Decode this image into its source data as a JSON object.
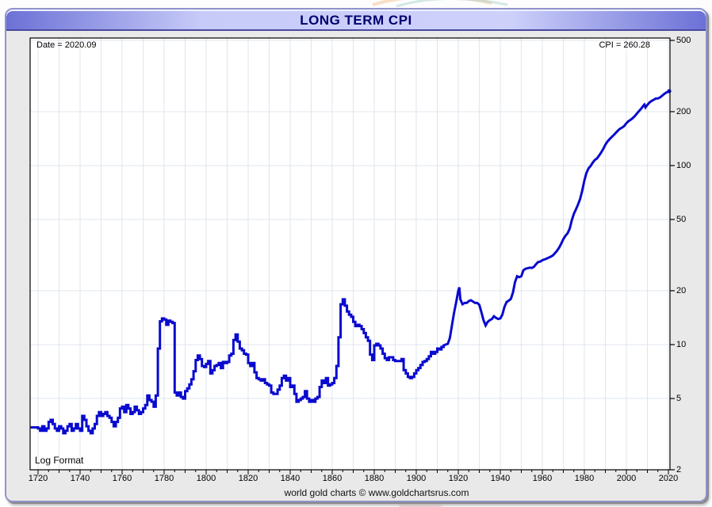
{
  "window": {
    "title": "LONG TERM CPI"
  },
  "annotations": {
    "date_label": "Date = 2020.09",
    "cpi_label": "CPI = 260.28",
    "scale_label": "Log Format",
    "footer": "world gold charts © www.goldchartsrus.com"
  },
  "colors": {
    "line": "#0909cf",
    "grid": "#dfe5ee",
    "plot_border": "#000000",
    "plot_bg": "#ffffff",
    "window_bg": "#e9e9e9",
    "titlebar_edge": "#6c71d6",
    "titlebar_mid": "#cdd1fa",
    "title_text": "#00006e"
  },
  "chart_data": {
    "type": "line",
    "title": "LONG TERM CPI",
    "xlabel": "",
    "ylabel": "",
    "x_axis": {
      "range": [
        1720,
        2020
      ],
      "label_step_years": 20,
      "gridline_step_years": 10,
      "minor_tick_step_years": 5,
      "tick_labels": [
        "1720",
        "1740",
        "1760",
        "1780",
        "1800",
        "1820",
        "1840",
        "1860",
        "1880",
        "1900",
        "1920",
        "1940",
        "1960",
        "1980",
        "2000",
        "2020"
      ]
    },
    "y_axis": {
      "scale": "log",
      "position": "right",
      "range": [
        2,
        500
      ],
      "ticks": [
        500,
        200,
        100,
        50,
        20,
        10,
        5,
        2
      ],
      "tick_labels": [
        "500",
        "200",
        "100",
        "50",
        "20",
        "10",
        "5",
        "2"
      ]
    },
    "grid": true,
    "legend": null,
    "latest": {
      "date": "2020.09",
      "value": 260.28
    },
    "step_until_year": 1913,
    "series": [
      {
        "name": "CPI",
        "color": "#0909cf",
        "points": [
          [
            1716,
            3.45
          ],
          [
            1720,
            3.4
          ],
          [
            1721,
            3.3
          ],
          [
            1722,
            3.5
          ],
          [
            1723,
            3.3
          ],
          [
            1724,
            3.4
          ],
          [
            1725,
            3.7
          ],
          [
            1726,
            3.8
          ],
          [
            1727,
            3.6
          ],
          [
            1728,
            3.4
          ],
          [
            1729,
            3.3
          ],
          [
            1730,
            3.5
          ],
          [
            1731,
            3.4
          ],
          [
            1732,
            3.2
          ],
          [
            1733,
            3.3
          ],
          [
            1734,
            3.5
          ],
          [
            1735,
            3.6
          ],
          [
            1736,
            3.3
          ],
          [
            1737,
            3.4
          ],
          [
            1738,
            3.6
          ],
          [
            1739,
            3.4
          ],
          [
            1740,
            3.3
          ],
          [
            1741,
            4.0
          ],
          [
            1742,
            3.8
          ],
          [
            1743,
            3.5
          ],
          [
            1744,
            3.3
          ],
          [
            1745,
            3.2
          ],
          [
            1746,
            3.4
          ],
          [
            1747,
            3.6
          ],
          [
            1748,
            4.0
          ],
          [
            1749,
            4.2
          ],
          [
            1750,
            4.0
          ],
          [
            1751,
            4.1
          ],
          [
            1752,
            4.2
          ],
          [
            1753,
            4.0
          ],
          [
            1754,
            3.9
          ],
          [
            1755,
            3.7
          ],
          [
            1756,
            3.5
          ],
          [
            1757,
            3.7
          ],
          [
            1758,
            3.9
          ],
          [
            1759,
            4.4
          ],
          [
            1760,
            4.5
          ],
          [
            1761,
            4.2
          ],
          [
            1762,
            4.6
          ],
          [
            1763,
            4.4
          ],
          [
            1764,
            4.1
          ],
          [
            1765,
            4.2
          ],
          [
            1766,
            4.5
          ],
          [
            1767,
            4.3
          ],
          [
            1768,
            4.1
          ],
          [
            1769,
            4.2
          ],
          [
            1770,
            4.4
          ],
          [
            1771,
            4.6
          ],
          [
            1772,
            5.2
          ],
          [
            1773,
            4.9
          ],
          [
            1774,
            4.8
          ],
          [
            1775,
            4.5
          ],
          [
            1776,
            5.2
          ],
          [
            1777,
            9.5
          ],
          [
            1778,
            13.5
          ],
          [
            1779,
            14.0
          ],
          [
            1780,
            13.8
          ],
          [
            1781,
            12.9
          ],
          [
            1782,
            13.6
          ],
          [
            1783,
            13.4
          ],
          [
            1784,
            13.2
          ],
          [
            1785,
            5.4
          ],
          [
            1786,
            5.2
          ],
          [
            1787,
            5.4
          ],
          [
            1788,
            5.1
          ],
          [
            1789,
            5.0
          ],
          [
            1790,
            5.5
          ],
          [
            1791,
            5.7
          ],
          [
            1792,
            6.0
          ],
          [
            1793,
            6.4
          ],
          [
            1794,
            7.1
          ],
          [
            1795,
            8.2
          ],
          [
            1796,
            8.7
          ],
          [
            1797,
            8.3
          ],
          [
            1798,
            7.6
          ],
          [
            1799,
            7.5
          ],
          [
            1800,
            7.8
          ],
          [
            1801,
            8.1
          ],
          [
            1802,
            6.9
          ],
          [
            1803,
            7.2
          ],
          [
            1804,
            7.6
          ],
          [
            1805,
            7.7
          ],
          [
            1806,
            7.9
          ],
          [
            1807,
            7.4
          ],
          [
            1808,
            8.0
          ],
          [
            1809,
            7.9
          ],
          [
            1810,
            8.0
          ],
          [
            1811,
            8.7
          ],
          [
            1812,
            8.9
          ],
          [
            1813,
            10.6
          ],
          [
            1814,
            11.4
          ],
          [
            1815,
            10.4
          ],
          [
            1816,
            9.5
          ],
          [
            1817,
            9.3
          ],
          [
            1818,
            8.9
          ],
          [
            1819,
            8.8
          ],
          [
            1820,
            7.9
          ],
          [
            1821,
            7.6
          ],
          [
            1822,
            7.9
          ],
          [
            1823,
            7.0
          ],
          [
            1824,
            6.5
          ],
          [
            1825,
            6.4
          ],
          [
            1826,
            6.3
          ],
          [
            1827,
            6.4
          ],
          [
            1828,
            6.1
          ],
          [
            1829,
            6.0
          ],
          [
            1830,
            5.9
          ],
          [
            1831,
            5.4
          ],
          [
            1832,
            5.3
          ],
          [
            1833,
            5.3
          ],
          [
            1834,
            5.6
          ],
          [
            1835,
            5.9
          ],
          [
            1836,
            6.5
          ],
          [
            1837,
            6.7
          ],
          [
            1838,
            6.3
          ],
          [
            1839,
            6.5
          ],
          [
            1840,
            5.8
          ],
          [
            1841,
            5.9
          ],
          [
            1842,
            5.3
          ],
          [
            1843,
            4.8
          ],
          [
            1844,
            4.9
          ],
          [
            1845,
            5.0
          ],
          [
            1846,
            5.1
          ],
          [
            1847,
            5.5
          ],
          [
            1848,
            5.0
          ],
          [
            1849,
            4.8
          ],
          [
            1850,
            4.9
          ],
          [
            1851,
            4.8
          ],
          [
            1852,
            5.0
          ],
          [
            1853,
            5.1
          ],
          [
            1854,
            5.8
          ],
          [
            1855,
            6.3
          ],
          [
            1856,
            6.1
          ],
          [
            1857,
            6.5
          ],
          [
            1858,
            5.9
          ],
          [
            1859,
            6.0
          ],
          [
            1860,
            6.1
          ],
          [
            1861,
            6.5
          ],
          [
            1862,
            7.6
          ],
          [
            1863,
            11.0
          ],
          [
            1864,
            16.8
          ],
          [
            1865,
            17.9
          ],
          [
            1866,
            16.5
          ],
          [
            1867,
            15.3
          ],
          [
            1868,
            14.7
          ],
          [
            1869,
            14.3
          ],
          [
            1870,
            13.4
          ],
          [
            1871,
            12.7
          ],
          [
            1872,
            12.9
          ],
          [
            1873,
            12.7
          ],
          [
            1874,
            12.2
          ],
          [
            1875,
            11.6
          ],
          [
            1876,
            11.0
          ],
          [
            1877,
            10.5
          ],
          [
            1878,
            8.8
          ],
          [
            1879,
            8.2
          ],
          [
            1880,
            9.9
          ],
          [
            1881,
            10.1
          ],
          [
            1882,
            9.9
          ],
          [
            1883,
            9.5
          ],
          [
            1884,
            8.9
          ],
          [
            1885,
            8.4
          ],
          [
            1886,
            8.2
          ],
          [
            1887,
            8.5
          ],
          [
            1888,
            8.5
          ],
          [
            1889,
            8.2
          ],
          [
            1890,
            8.1
          ],
          [
            1891,
            8.1
          ],
          [
            1892,
            8.1
          ],
          [
            1893,
            8.3
          ],
          [
            1894,
            7.2
          ],
          [
            1895,
            6.9
          ],
          [
            1896,
            6.6
          ],
          [
            1897,
            6.5
          ],
          [
            1898,
            6.6
          ],
          [
            1899,
            6.9
          ],
          [
            1900,
            7.2
          ],
          [
            1901,
            7.4
          ],
          [
            1902,
            7.7
          ],
          [
            1903,
            8.0
          ],
          [
            1904,
            8.1
          ],
          [
            1905,
            8.3
          ],
          [
            1906,
            8.6
          ],
          [
            1907,
            9.1
          ],
          [
            1908,
            8.9
          ],
          [
            1909,
            9.1
          ],
          [
            1910,
            9.5
          ],
          [
            1911,
            9.4
          ],
          [
            1912,
            9.7
          ],
          [
            1913,
            9.9
          ],
          [
            1914,
            10.0
          ],
          [
            1915,
            10.1
          ],
          [
            1916,
            10.9
          ],
          [
            1917,
            12.8
          ],
          [
            1918,
            15.1
          ],
          [
            1919,
            17.3
          ],
          [
            1920,
            20.0
          ],
          [
            1920.5,
            20.9
          ],
          [
            1921,
            17.9
          ],
          [
            1922,
            16.8
          ],
          [
            1923,
            17.1
          ],
          [
            1924,
            17.1
          ],
          [
            1925,
            17.5
          ],
          [
            1926,
            17.7
          ],
          [
            1927,
            17.4
          ],
          [
            1928,
            17.1
          ],
          [
            1929,
            17.1
          ],
          [
            1930,
            16.7
          ],
          [
            1931,
            15.2
          ],
          [
            1932,
            13.7
          ],
          [
            1933,
            12.8
          ],
          [
            1934,
            13.4
          ],
          [
            1935,
            13.7
          ],
          [
            1936,
            13.9
          ],
          [
            1937,
            14.4
          ],
          [
            1938,
            14.1
          ],
          [
            1939,
            13.9
          ],
          [
            1940,
            14.0
          ],
          [
            1941,
            14.7
          ],
          [
            1942,
            16.3
          ],
          [
            1943,
            17.3
          ],
          [
            1944,
            17.6
          ],
          [
            1945,
            18.0
          ],
          [
            1946,
            19.5
          ],
          [
            1947,
            22.3
          ],
          [
            1948,
            24.1
          ],
          [
            1949,
            23.8
          ],
          [
            1950,
            24.1
          ],
          [
            1951,
            26.0
          ],
          [
            1952,
            26.5
          ],
          [
            1953,
            26.7
          ],
          [
            1954,
            26.9
          ],
          [
            1955,
            26.8
          ],
          [
            1956,
            27.2
          ],
          [
            1957,
            28.1
          ],
          [
            1958,
            28.9
          ],
          [
            1959,
            29.1
          ],
          [
            1960,
            29.6
          ],
          [
            1961,
            29.9
          ],
          [
            1962,
            30.2
          ],
          [
            1963,
            30.6
          ],
          [
            1964,
            31.0
          ],
          [
            1965,
            31.5
          ],
          [
            1966,
            32.4
          ],
          [
            1967,
            33.4
          ],
          [
            1968,
            34.8
          ],
          [
            1969,
            36.7
          ],
          [
            1970,
            38.8
          ],
          [
            1971,
            40.5
          ],
          [
            1972,
            41.8
          ],
          [
            1973,
            44.4
          ],
          [
            1974,
            49.3
          ],
          [
            1975,
            53.8
          ],
          [
            1976,
            56.9
          ],
          [
            1977,
            60.6
          ],
          [
            1978,
            65.2
          ],
          [
            1979,
            72.6
          ],
          [
            1980,
            82.4
          ],
          [
            1981,
            90.9
          ],
          [
            1982,
            96.5
          ],
          [
            1983,
            99.6
          ],
          [
            1984,
            103.9
          ],
          [
            1985,
            107.6
          ],
          [
            1986,
            109.6
          ],
          [
            1987,
            113.6
          ],
          [
            1988,
            118.3
          ],
          [
            1989,
            124.0
          ],
          [
            1990,
            130.7
          ],
          [
            1991,
            136.2
          ],
          [
            1992,
            140.3
          ],
          [
            1993,
            144.5
          ],
          [
            1994,
            148.2
          ],
          [
            1995,
            152.4
          ],
          [
            1996,
            156.9
          ],
          [
            1997,
            160.5
          ],
          [
            1998,
            163.0
          ],
          [
            1999,
            166.6
          ],
          [
            2000,
            172.2
          ],
          [
            2001,
            177.1
          ],
          [
            2002,
            179.9
          ],
          [
            2003,
            184.0
          ],
          [
            2004,
            188.9
          ],
          [
            2005,
            195.3
          ],
          [
            2006,
            201.6
          ],
          [
            2007,
            207.3
          ],
          [
            2008,
            215.3
          ],
          [
            2008.6,
            219.1
          ],
          [
            2009.1,
            211.1
          ],
          [
            2010,
            218.1
          ],
          [
            2011,
            224.9
          ],
          [
            2012,
            229.6
          ],
          [
            2013,
            233.0
          ],
          [
            2014,
            236.7
          ],
          [
            2015,
            237.0
          ],
          [
            2016,
            240.0
          ],
          [
            2017,
            245.1
          ],
          [
            2018,
            251.1
          ],
          [
            2019,
            255.7
          ],
          [
            2020.7,
            260.28
          ]
        ]
      }
    ]
  }
}
